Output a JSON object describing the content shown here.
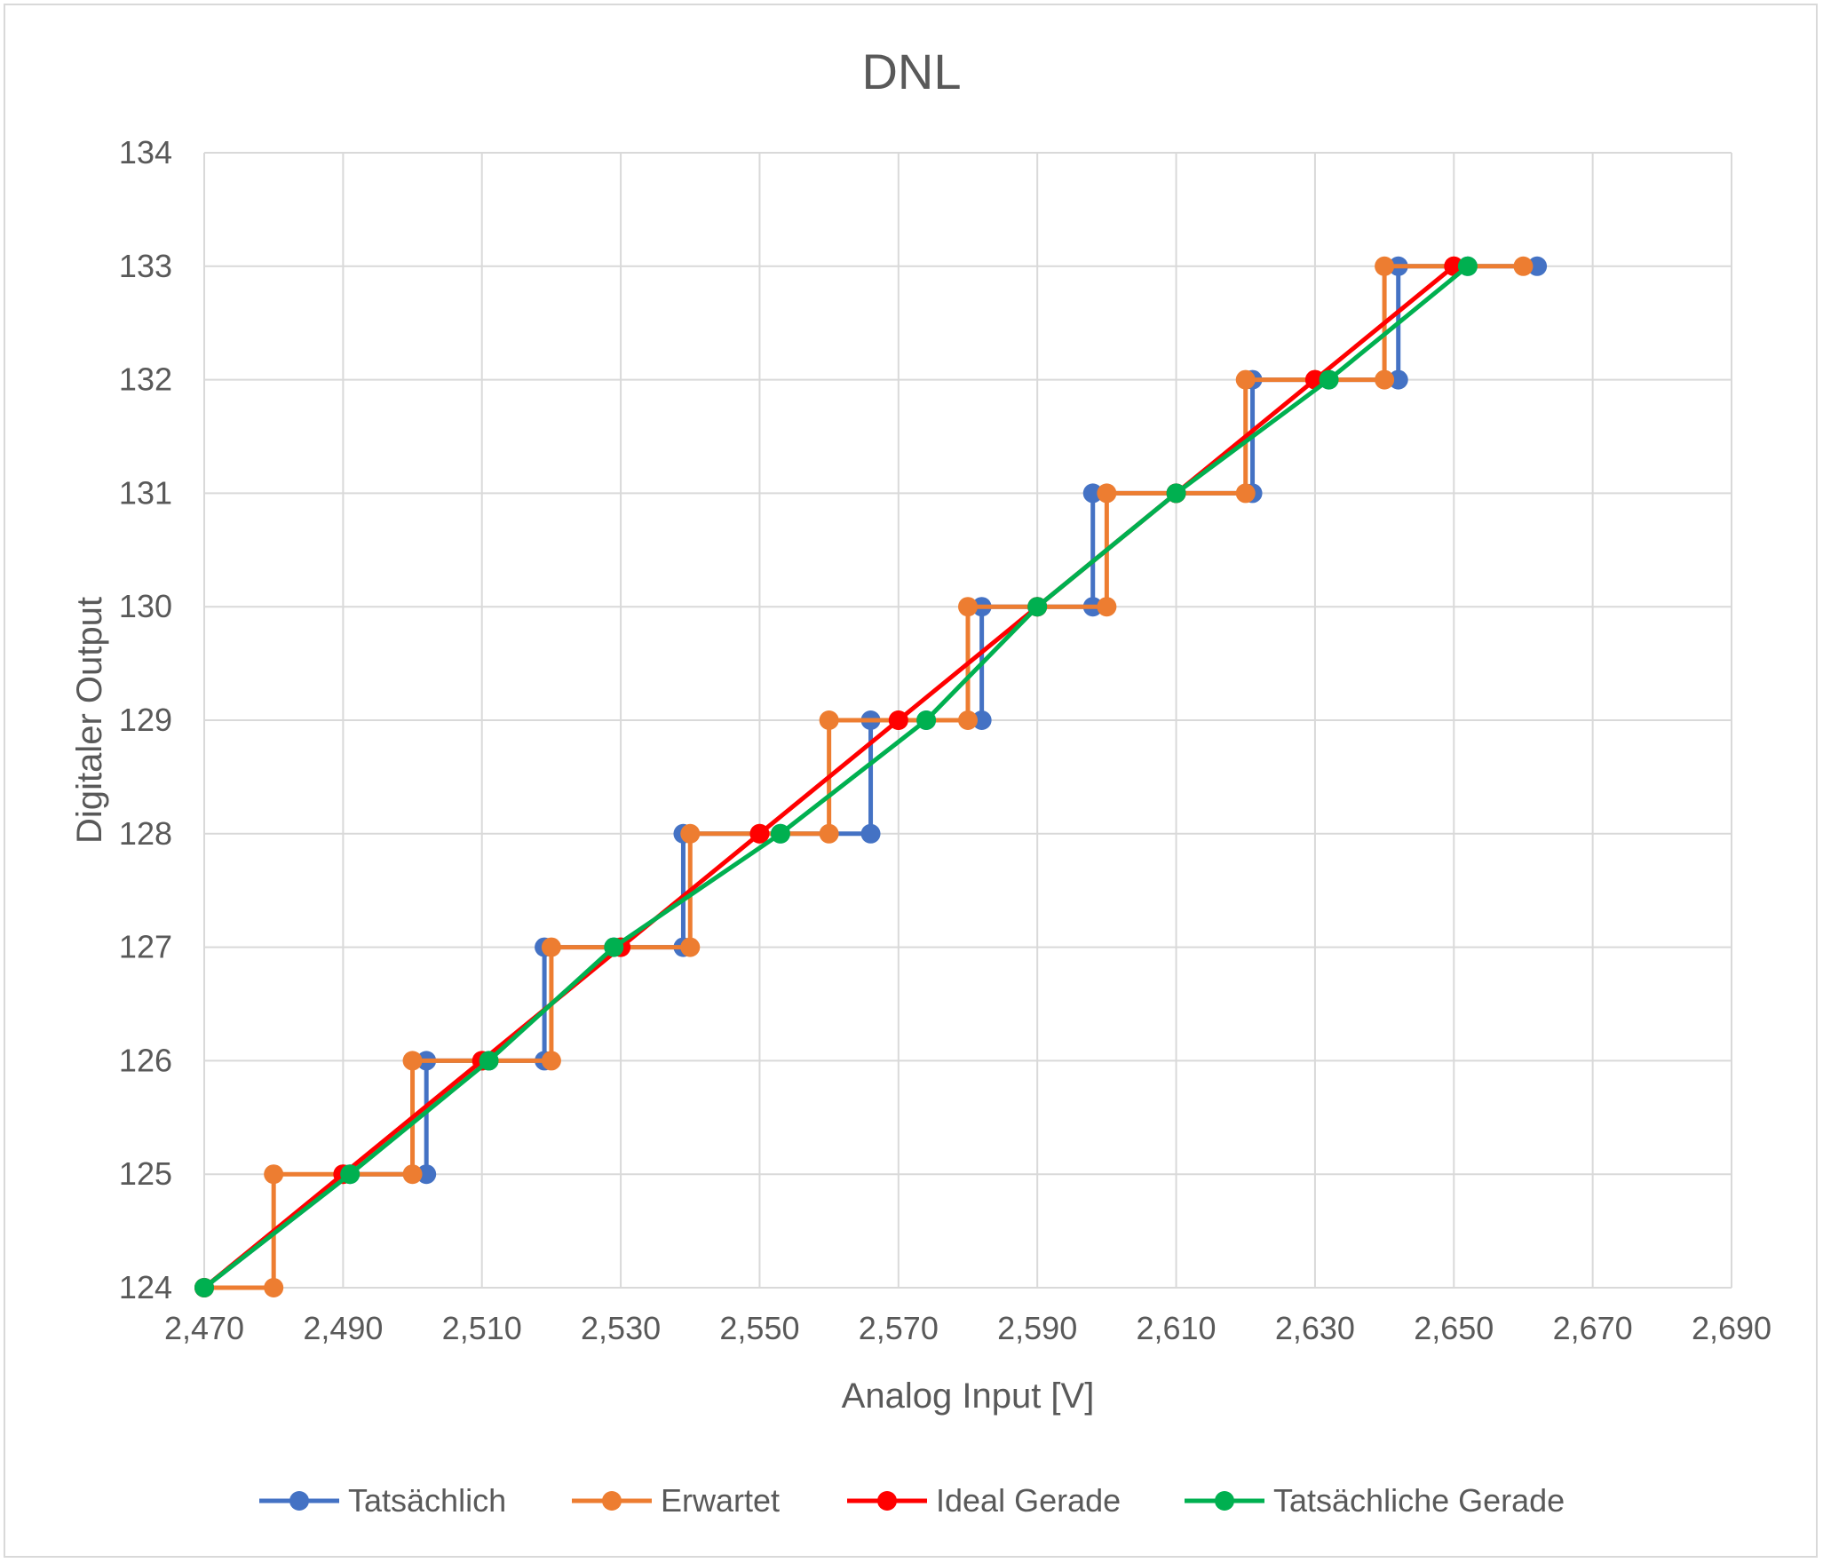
{
  "chart_data": {
    "type": "line",
    "title": "DNL",
    "xlabel": "Analog Input [V]",
    "ylabel": "Digitaler Output",
    "xlim": [
      2.47,
      2.69
    ],
    "ylim": [
      124,
      134
    ],
    "x_ticks": [
      "2,470",
      "2,490",
      "2,510",
      "2,530",
      "2,550",
      "2,570",
      "2,590",
      "2,610",
      "2,630",
      "2,650",
      "2,670",
      "2,690"
    ],
    "y_ticks": [
      "124",
      "125",
      "126",
      "127",
      "128",
      "129",
      "130",
      "131",
      "132",
      "133",
      "134"
    ],
    "grid": true,
    "legend_position": "bottom",
    "series": [
      {
        "name": "Tatsächlich",
        "color": "#4472c4",
        "points": [
          [
            2.47,
            124
          ],
          [
            2.491,
            125
          ],
          [
            2.502,
            125
          ],
          [
            2.502,
            126
          ],
          [
            2.511,
            126
          ],
          [
            2.519,
            126
          ],
          [
            2.519,
            127
          ],
          [
            2.529,
            127
          ],
          [
            2.539,
            127
          ],
          [
            2.539,
            128
          ],
          [
            2.553,
            128
          ],
          [
            2.566,
            128
          ],
          [
            2.566,
            129
          ],
          [
            2.574,
            129
          ],
          [
            2.582,
            129
          ],
          [
            2.582,
            130
          ],
          [
            2.59,
            130
          ],
          [
            2.598,
            130
          ],
          [
            2.598,
            131
          ],
          [
            2.61,
            131
          ],
          [
            2.621,
            131
          ],
          [
            2.621,
            132
          ],
          [
            2.632,
            132
          ],
          [
            2.642,
            132
          ],
          [
            2.642,
            133
          ],
          [
            2.652,
            133
          ],
          [
            2.662,
            133
          ]
        ]
      },
      {
        "name": "Erwartet",
        "color": "#ed7d31",
        "points": [
          [
            2.47,
            124
          ],
          [
            2.48,
            124
          ],
          [
            2.48,
            125
          ],
          [
            2.49,
            125
          ],
          [
            2.5,
            125
          ],
          [
            2.5,
            126
          ],
          [
            2.51,
            126
          ],
          [
            2.52,
            126
          ],
          [
            2.52,
            127
          ],
          [
            2.53,
            127
          ],
          [
            2.54,
            127
          ],
          [
            2.54,
            128
          ],
          [
            2.55,
            128
          ],
          [
            2.56,
            128
          ],
          [
            2.56,
            129
          ],
          [
            2.57,
            129
          ],
          [
            2.58,
            129
          ],
          [
            2.58,
            130
          ],
          [
            2.59,
            130
          ],
          [
            2.6,
            130
          ],
          [
            2.6,
            131
          ],
          [
            2.61,
            131
          ],
          [
            2.62,
            131
          ],
          [
            2.62,
            132
          ],
          [
            2.63,
            132
          ],
          [
            2.64,
            132
          ],
          [
            2.64,
            133
          ],
          [
            2.65,
            133
          ],
          [
            2.66,
            133
          ]
        ]
      },
      {
        "name": "Ideal Gerade",
        "color": "#ff0000",
        "points": [
          [
            2.47,
            124
          ],
          [
            2.49,
            125
          ],
          [
            2.51,
            126
          ],
          [
            2.53,
            127
          ],
          [
            2.55,
            128
          ],
          [
            2.57,
            129
          ],
          [
            2.59,
            130
          ],
          [
            2.61,
            131
          ],
          [
            2.63,
            132
          ],
          [
            2.65,
            133
          ]
        ]
      },
      {
        "name": "Tatsächliche Gerade",
        "color": "#00b050",
        "points": [
          [
            2.47,
            124
          ],
          [
            2.491,
            125
          ],
          [
            2.511,
            126
          ],
          [
            2.529,
            127
          ],
          [
            2.553,
            128
          ],
          [
            2.574,
            129
          ],
          [
            2.59,
            130
          ],
          [
            2.61,
            131
          ],
          [
            2.632,
            132
          ],
          [
            2.652,
            133
          ]
        ]
      }
    ]
  }
}
